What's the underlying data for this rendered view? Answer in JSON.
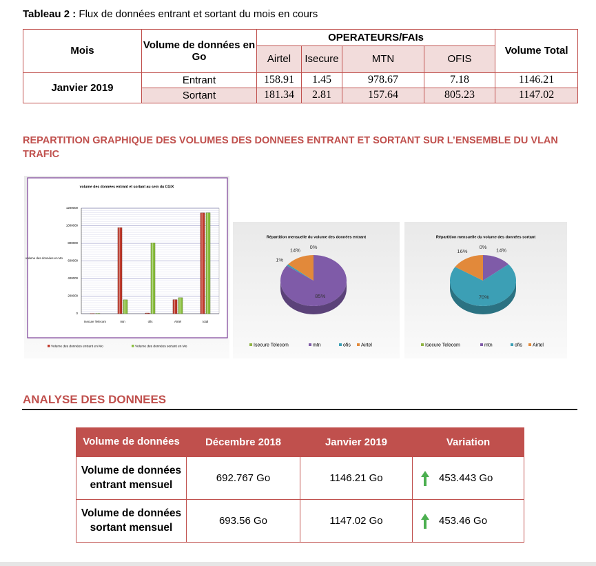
{
  "caption": {
    "label": "Tableau 2 :",
    "text": "Flux de données entrant et sortant du mois en cours"
  },
  "table1": {
    "headers": {
      "month": "Mois",
      "volume": "Volume de données en Go",
      "operators": "OPERATEURS/FAIs",
      "total": "Volume Total"
    },
    "operators": [
      "Airtel",
      "Isecure",
      "MTN",
      "OFIS"
    ],
    "month": "Janvier 2019",
    "rows": [
      {
        "label": "Entrant",
        "values": [
          158.91,
          1.45,
          978.67,
          7.18
        ],
        "total": 1146.21
      },
      {
        "label": "Sortant",
        "values": [
          181.34,
          2.81,
          157.64,
          805.23
        ],
        "total": 1147.02
      }
    ]
  },
  "section1_title": "REPARTITION GRAPHIQUE DES VOLUMES DES DONNEES ENTRANT ET SORTANT SUR L’ENSEMBLE DU VLAN TRAFIC",
  "chart_data": [
    {
      "type": "bar",
      "title": "volume des données entrant et sortant au sein du CGIX",
      "y_label": "volume des données en Mo",
      "categories": [
        "Isecure Telecom",
        "mtn",
        "ofis",
        "Airtel",
        "total"
      ],
      "series": [
        {
          "name": "Volume des données entrant en Mo",
          "color": "#c0392b",
          "values": [
            1450,
            978670,
            7180,
            158910,
            1146210
          ]
        },
        {
          "name": "Volume des données sortant en Mo",
          "color": "#8bbf3f",
          "values": [
            2810,
            157640,
            805230,
            181340,
            1147020
          ]
        }
      ],
      "ylim": [
        0,
        1200000
      ],
      "yticks": [
        0,
        200000,
        400000,
        600000,
        800000,
        1000000,
        1200000
      ],
      "grid": true,
      "legend": "bottom"
    },
    {
      "type": "pie",
      "title": "Répartition mensuelle du volume des données entrant",
      "categories": [
        "Isecure Telecom",
        "mtn",
        "ofis",
        "Airtel"
      ],
      "colors": [
        "#8fb443",
        "#7f5ba8",
        "#3c9fb5",
        "#e2893a"
      ],
      "values": [
        0,
        85,
        1,
        14
      ],
      "value_labels": [
        "0%",
        "85%",
        "1%",
        "14%"
      ],
      "legend": "bottom"
    },
    {
      "type": "pie",
      "title": "Répartition mensuelle du volume des données sortant",
      "categories": [
        "Isecure Telecom",
        "mtn",
        "ofis",
        "Airtel"
      ],
      "colors": [
        "#8fb443",
        "#7f5ba8",
        "#3c9fb5",
        "#e2893a"
      ],
      "values": [
        0,
        14,
        70,
        16
      ],
      "value_labels": [
        "0%",
        "14%",
        "70%",
        "16%"
      ],
      "legend": "bottom"
    }
  ],
  "section2_title": "ANALYSE DES DONNEES",
  "table2": {
    "headers": [
      "Volume de données",
      "Décembre 2018",
      "Janvier 2019",
      "Variation"
    ],
    "rows": [
      {
        "label": "Volume de données entrant mensuel",
        "cells": [
          "692.767 Go",
          "1146.21 Go",
          "453.443 Go"
        ]
      },
      {
        "label": "Volume de données sortant mensuel",
        "cells": [
          "693.56 Go",
          "1147.02 Go",
          "453.46 Go"
        ]
      }
    ]
  }
}
